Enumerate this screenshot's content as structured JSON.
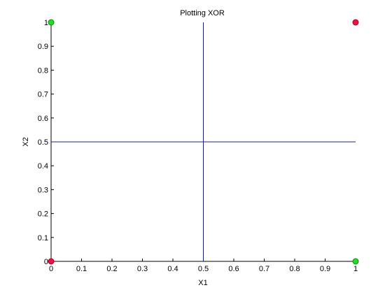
{
  "chart_data": {
    "type": "scatter",
    "title": "Plotting XOR",
    "xlabel": "X1",
    "ylabel": "X2",
    "xlim": [
      0,
      1
    ],
    "ylim": [
      0,
      1
    ],
    "x_ticks": [
      "0",
      "0.1",
      "0.2",
      "0.3",
      "0.4",
      "0.5",
      "0.6",
      "0.7",
      "0.8",
      "0.9",
      "1"
    ],
    "y_ticks": [
      "0",
      "0.1",
      "0.2",
      "0.3",
      "0.4",
      "0.5",
      "0.6",
      "0.7",
      "0.8",
      "0.9",
      "1"
    ],
    "grid": false,
    "points": [
      {
        "x": 0,
        "y": 1,
        "color": "#22dd22",
        "edge": "#118811"
      },
      {
        "x": 1,
        "y": 1,
        "color": "#ee1144",
        "edge": "#aa0022"
      },
      {
        "x": 0,
        "y": 0,
        "color": "#ee1144",
        "edge": "#aa0022"
      },
      {
        "x": 1,
        "y": 0,
        "color": "#22dd22",
        "edge": "#118811"
      }
    ],
    "boundary_lines": [
      {
        "orientation": "vertical",
        "at": 0.5,
        "color": "#1a237e"
      },
      {
        "orientation": "horizontal",
        "at": 0.5,
        "color": "#1a237e"
      }
    ]
  }
}
